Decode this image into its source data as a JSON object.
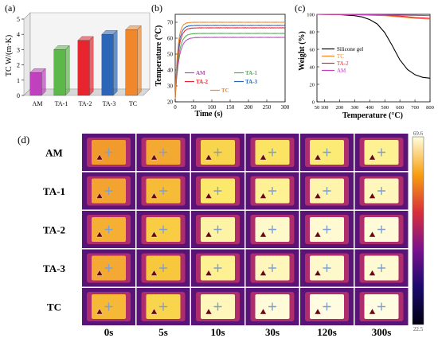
{
  "chart_data": [
    {
      "type": "bar",
      "panel_label": "(a)",
      "ylabel": "TC  W/(m·K)",
      "categories": [
        "AM",
        "TA-1",
        "TA-2",
        "TA-3",
        "TC"
      ],
      "values": [
        1.5,
        3.0,
        3.6,
        4.0,
        4.3
      ],
      "ylim": [
        0,
        5
      ],
      "yticks": [
        "0",
        "1",
        "2",
        "3",
        "4",
        "5"
      ],
      "bar_colors": [
        "#c040c0",
        "#5db84a",
        "#e8252e",
        "#2b66b8",
        "#f0872a"
      ],
      "grid": false
    },
    {
      "type": "line",
      "panel_label": "(b)",
      "xlabel": "Time (s)",
      "ylabel": "Temperature (℃)",
      "xlim": [
        0,
        300
      ],
      "ylim": [
        20,
        75
      ],
      "xticks": [
        "0",
        "50",
        "100",
        "150",
        "200",
        "250",
        "300"
      ],
      "yticks": [
        "20",
        "30",
        "40",
        "50",
        "60",
        "70"
      ],
      "legend_position": "bottom-center",
      "series": [
        {
          "name": "AM",
          "color": "#c040c0",
          "plateau": 60.5
        },
        {
          "name": "TA-1",
          "color": "#4caf50",
          "plateau": 63.0
        },
        {
          "name": "TA-2",
          "color": "#e8252e",
          "plateau": 66.5
        },
        {
          "name": "TA-3",
          "color": "#2b66b8",
          "plateau": 68.0
        },
        {
          "name": "TC",
          "color": "#f0872a",
          "plateau": 70.0
        }
      ]
    },
    {
      "type": "line",
      "panel_label": "(c)",
      "xlabel": "Temperature (°C)",
      "ylabel": "Weight (%)",
      "xlim": [
        50,
        800
      ],
      "ylim": [
        0,
        100
      ],
      "xticks": [
        "50",
        "100",
        "200",
        "300",
        "400",
        "500",
        "600",
        "700",
        "800"
      ],
      "yticks": [
        "0",
        "20",
        "40",
        "60",
        "80",
        "100"
      ],
      "legend_position": "center-left",
      "series": [
        {
          "name": "Silicone gel",
          "color": "#000000",
          "x": [
            50,
            200,
            300,
            350,
            400,
            450,
            500,
            550,
            600,
            650,
            700,
            750,
            800
          ],
          "y": [
            100,
            99.5,
            98.5,
            97,
            94,
            89,
            79,
            64,
            48,
            37,
            31,
            28,
            27
          ]
        },
        {
          "name": "TC",
          "color": "#f0872a",
          "x": [
            50,
            300,
            500,
            600,
            700,
            800
          ],
          "y": [
            100,
            99.5,
            98.5,
            97,
            95.5,
            94.5
          ]
        },
        {
          "name": "TA-2",
          "color": "#e8252e",
          "x": [
            50,
            300,
            500,
            600,
            700,
            800
          ],
          "y": [
            100,
            99.6,
            99,
            98,
            96.5,
            95.5
          ]
        },
        {
          "name": "AM",
          "color": "#c040c0",
          "x": [
            50,
            300,
            500,
            600,
            700,
            800
          ],
          "y": [
            100,
            99.7,
            99.3,
            99,
            98.8,
            98.5
          ]
        }
      ]
    },
    {
      "type": "heatmap",
      "panel_label": "(d)",
      "rows": [
        "AM",
        "TA-1",
        "TA-2",
        "TA-3",
        "TC"
      ],
      "columns": [
        "0s",
        "5s",
        "10s",
        "30s",
        "120s",
        "300s"
      ],
      "colorbar_max": "69.6",
      "colorbar_min": "22.5",
      "intensity": [
        [
          0.55,
          0.6,
          0.75,
          0.82,
          0.86,
          0.9
        ],
        [
          0.58,
          0.66,
          0.84,
          0.9,
          0.93,
          0.95
        ],
        [
          0.62,
          0.72,
          0.92,
          0.97,
          0.98,
          0.99
        ],
        [
          0.6,
          0.7,
          0.9,
          0.95,
          0.97,
          0.98
        ],
        [
          0.65,
          0.75,
          0.95,
          0.99,
          1.0,
          1.0
        ]
      ]
    }
  ]
}
